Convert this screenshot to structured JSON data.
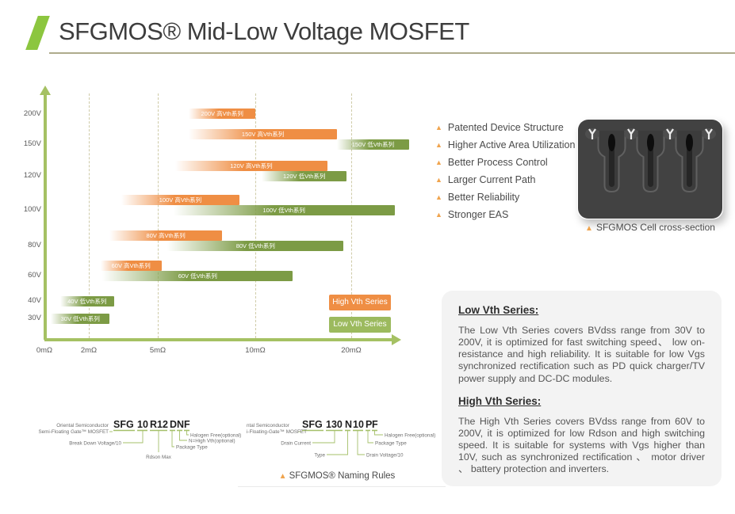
{
  "header": {
    "title": "SFGMOS® Mid-Low Voltage MOSFET"
  },
  "chart_data": {
    "type": "bar",
    "subtype": "horizontal-range",
    "title": "",
    "xlabel": "",
    "ylabel": "",
    "x_tick_labels": [
      "0mΩ",
      "2mΩ",
      "5mΩ",
      "10mΩ",
      "20mΩ"
    ],
    "x_tick_values": [
      0,
      2,
      5,
      10,
      20
    ],
    "y_categories": [
      "200V",
      "150V",
      "120V",
      "100V",
      "80V",
      "60V",
      "40V",
      "30V"
    ],
    "bars": [
      {
        "voltage": "200V",
        "series": "high",
        "label": "200V 高Vth系列",
        "range_mohm": [
          6.6,
          10
        ]
      },
      {
        "voltage": "150V",
        "series": "high",
        "label": "150V 高Vth系列",
        "range_mohm": [
          6.6,
          18.5
        ]
      },
      {
        "voltage": "150V",
        "series": "low",
        "label": "150V 低Vth系列",
        "range_mohm": [
          18.5,
          26
        ]
      },
      {
        "voltage": "120V",
        "series": "high",
        "label": "120V 高Vth系列",
        "range_mohm": [
          5.9,
          17.5
        ]
      },
      {
        "voltage": "120V",
        "series": "low",
        "label": "120V 低Vth系列",
        "range_mohm": [
          10.7,
          19.5
        ]
      },
      {
        "voltage": "100V",
        "series": "high",
        "label": "100V 高Vth系列",
        "range_mohm": [
          3.4,
          9.2
        ]
      },
      {
        "voltage": "100V",
        "series": "low",
        "label": "100V 低Vth系列",
        "range_mohm": [
          5.8,
          24.5
        ]
      },
      {
        "voltage": "80V",
        "series": "high",
        "label": "80V 高Vth系列",
        "range_mohm": [
          2.9,
          8.3
        ]
      },
      {
        "voltage": "80V",
        "series": "low",
        "label": "80V 低Vth系列",
        "range_mohm": [
          5.5,
          19.2
        ]
      },
      {
        "voltage": "60V",
        "series": "high",
        "label": "60V 高Vth系列",
        "range_mohm": [
          2.5,
          5.2
        ]
      },
      {
        "voltage": "60V",
        "series": "low",
        "label": "60V 低Vth系列",
        "range_mohm": [
          2.6,
          13.9
        ]
      },
      {
        "voltage": "40V",
        "series": "low",
        "label": "40V 低Vth系列",
        "range_mohm": [
          0.7,
          3.1
        ]
      },
      {
        "voltage": "30V",
        "series": "low",
        "label": "30V 低Vth系列",
        "range_mohm": [
          0.3,
          2.9
        ]
      }
    ],
    "legend": [
      {
        "name": "High Vth Series",
        "color": "#EF8E44"
      },
      {
        "name": "Low Vth Series",
        "color": "#9CBA5E"
      }
    ],
    "legend_position": "bottom-right-inside",
    "grid": "dashed-vertical",
    "bar_colors": {
      "high": "#EF8E44",
      "low": "#7C9B45"
    },
    "axis_color": "#A5C163"
  },
  "features": {
    "items": [
      "Patented Device Structure",
      "Higher Active Area Utilization",
      "Better Process Control",
      "Larger Current Path",
      "Better Reliability",
      "Stronger EAS"
    ]
  },
  "cross_section": {
    "caption": "SFGMOS Cell cross-section"
  },
  "info_box": {
    "low_heading": "Low Vth Series:",
    "low_body": "The Low Vth Series covers BVdss range from 30V to 200V, it is optimized for fast switching speed、 low on-resistance and high reliability. It is suitable for low Vgs synchronized rectification such as PD quick charger/TV power supply and DC-DC modules.",
    "high_heading": "High Vth Series:",
    "high_body": "The High Vth Series covers BVdss range from 60V to 200V, it is optimized for low Rdson and high switching speed. It is suitable for systems with Vgs higher than 10V, such as synchronized rectification 、 motor driver 、 battery protection and inverters."
  },
  "naming": {
    "caption": "SFGMOS® Naming Rules",
    "diagram1": {
      "segments": [
        "SFG",
        "10",
        "R12",
        "D",
        "N",
        "F"
      ],
      "labels": {
        "maker1": "Oriental Semiconductor",
        "maker2": "Semi-Floating Gate™ MOSFET",
        "breakdown": "Break Down Voltage/10",
        "rdson": "Rdson Max",
        "package": "Package Type",
        "nvth": "N=High Vth(optional)",
        "halogen": "Halogen Free(optional)"
      }
    },
    "diagram2": {
      "segments": [
        "SFG",
        "130",
        "N",
        "10",
        "P",
        "F"
      ],
      "labels": {
        "maker1": "ntal Semiconductor",
        "maker2": "i-Floating-Gate™ MOSFET",
        "drain_current": "Drain Current",
        "type": "Type",
        "drain_voltage": "Drain Voltage/10",
        "package": "Package Type",
        "halogen": "Halogen Free(optional)"
      }
    }
  }
}
